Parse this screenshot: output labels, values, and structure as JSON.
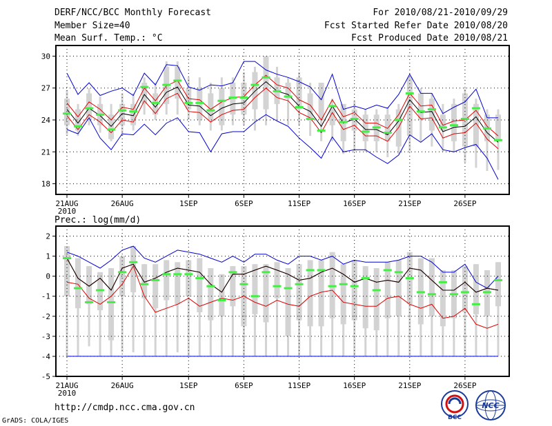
{
  "header": {
    "title": "DERF/NCC/BCC Monthly Forecast",
    "member_size": "Member Size=40",
    "variable": "Mean Surf. Temp.: °C",
    "period": "For 2010/08/21-2010/09/29",
    "started": "Fcst Started Refer Date 2010/08/20",
    "produced": "Fcst Produced Date 2010/08/21"
  },
  "footer": {
    "url": "http://cmdp.ncc.cma.gov.cn",
    "credit": "GrADS: COLA/IGES",
    "logo_bcc_text": "BCC",
    "logo_ncc_text": "NCC"
  },
  "colors": {
    "box": "#d3d3d3",
    "mean": "#000000",
    "spread": "#e00000",
    "extreme": "#0000d0",
    "median": "#44ee44",
    "grid": "#000000"
  },
  "chart_data": [
    {
      "type": "box-ensemble",
      "panel": "temperature",
      "title": "Mean Surf. Temp.: °C",
      "ylim": [
        17,
        31
      ],
      "yticks": [
        18,
        21,
        24,
        27,
        30
      ],
      "ytick_labels": [
        "18",
        "21",
        "24",
        "27",
        "30"
      ],
      "xticks": [
        1,
        6,
        12,
        17,
        22,
        27,
        32,
        37
      ],
      "xtick_labels": [
        "21AUG",
        "26AUG",
        "1SEP",
        "6SEP",
        "11SEP",
        "16SEP",
        "21SEP",
        "26SEP"
      ],
      "year_label": "2010",
      "days": 40,
      "box_low": [
        23.5,
        23.0,
        24.0,
        23.5,
        22.2,
        23.5,
        23.5,
        25.5,
        24.5,
        25.5,
        26.0,
        25.0,
        24.0,
        24.0,
        23.5,
        24.5,
        24.5,
        25.0,
        25.0,
        25.5,
        26.0,
        25.0,
        24.0,
        24.0,
        23.5,
        22.0,
        23.0,
        22.0,
        22.0,
        22.0,
        21.5,
        22.5,
        24.0,
        23.0,
        23.0,
        22.0,
        21.5,
        21.5,
        22.0,
        22.0
      ],
      "box_high": [
        26.0,
        25.0,
        26.5,
        25.5,
        24.5,
        25.5,
        25.5,
        27.5,
        26.5,
        29.0,
        29.0,
        27.0,
        27.0,
        26.5,
        27.0,
        27.5,
        27.5,
        28.5,
        30.0,
        28.0,
        27.5,
        28.0,
        26.5,
        27.5,
        25.0,
        25.5,
        25.0,
        24.5,
        24.5,
        24.5,
        25.0,
        28.0,
        26.5,
        26.0,
        24.5,
        25.5,
        26.5,
        25.5,
        24.5,
        24.5
      ],
      "whisk_low": [
        22.6,
        22.5,
        23.5,
        22.8,
        22.0,
        22.5,
        23.0,
        24.5,
        24.0,
        24.5,
        24.5,
        24.0,
        23.5,
        23.0,
        23.0,
        23.5,
        23.5,
        23.0,
        23.5,
        24.0,
        23.5,
        23.5,
        22.5,
        22.0,
        22.0,
        20.8,
        21.0,
        21.0,
        21.0,
        20.5,
        20.8,
        21.0,
        22.0,
        21.5,
        21.0,
        21.0,
        20.0,
        19.5,
        19.2,
        19.3
      ],
      "whisk_high": [
        26.8,
        25.5,
        27.0,
        26.2,
        25.5,
        26.5,
        26.5,
        28.0,
        27.5,
        29.5,
        29.5,
        28.0,
        28.0,
        27.5,
        28.0,
        28.0,
        28.5,
        29.0,
        30.0,
        29.0,
        28.0,
        28.5,
        27.5,
        27.5,
        26.0,
        25.5,
        25.8,
        25.0,
        25.0,
        25.2,
        25.5,
        28.0,
        27.0,
        26.5,
        25.5,
        26.0,
        27.0,
        26.0,
        25.0,
        25.0
      ],
      "mean": [
        25.0,
        23.7,
        25.1,
        24.4,
        23.4,
        24.6,
        24.4,
        26.4,
        25.2,
        26.6,
        27.1,
        25.4,
        25.3,
        24.4,
        25.1,
        25.5,
        25.6,
        26.7,
        27.6,
        26.7,
        26.4,
        25.3,
        24.8,
        23.4,
        25.3,
        23.7,
        24.1,
        23.1,
        23.1,
        22.6,
        23.9,
        25.9,
        24.7,
        24.8,
        22.9,
        23.3,
        23.4,
        24.3,
        22.8,
        21.9
      ],
      "mean_plus": [
        25.6,
        24.3,
        25.7,
        25.0,
        24.0,
        25.2,
        25.0,
        27.0,
        25.8,
        27.2,
        27.7,
        26.0,
        25.9,
        25.0,
        25.7,
        26.1,
        26.2,
        27.3,
        28.2,
        27.3,
        27.0,
        25.9,
        25.4,
        24.0,
        25.9,
        24.3,
        24.7,
        23.7,
        23.7,
        23.2,
        24.5,
        26.5,
        25.3,
        25.4,
        23.5,
        23.9,
        24.0,
        24.9,
        23.4,
        22.5
      ],
      "mean_minus": [
        24.4,
        23.1,
        24.5,
        23.8,
        22.8,
        24.0,
        23.8,
        25.8,
        24.6,
        26.0,
        26.5,
        24.8,
        24.7,
        23.8,
        24.5,
        24.9,
        25.0,
        26.1,
        27.0,
        26.1,
        25.8,
        24.7,
        24.2,
        22.8,
        24.7,
        23.1,
        23.5,
        22.5,
        22.5,
        22.0,
        23.3,
        25.3,
        24.1,
        24.2,
        22.3,
        22.7,
        22.8,
        23.7,
        22.2,
        21.3
      ],
      "maximum": [
        28.4,
        26.4,
        27.5,
        26.3,
        26.7,
        27.0,
        26.3,
        28.4,
        27.3,
        29.2,
        29.1,
        27.1,
        26.8,
        27.3,
        27.2,
        27.5,
        29.5,
        29.5,
        28.7,
        28.3,
        28.0,
        27.6,
        27.1,
        25.9,
        28.3,
        25.0,
        25.3,
        25.0,
        25.4,
        25.1,
        26.4,
        28.3,
        26.5,
        26.5,
        24.6,
        25.2,
        25.7,
        26.9,
        24.2,
        24.2
      ],
      "minimum": [
        23.1,
        22.7,
        24.2,
        22.3,
        21.2,
        22.7,
        22.6,
        23.6,
        22.6,
        23.7,
        24.2,
        22.9,
        22.8,
        21.0,
        22.7,
        22.9,
        22.9,
        23.8,
        24.5,
        23.9,
        23.4,
        22.3,
        21.4,
        20.4,
        22.4,
        21.0,
        21.2,
        21.2,
        20.5,
        19.9,
        20.7,
        22.6,
        21.9,
        22.7,
        21.2,
        21.0,
        21.4,
        21.7,
        20.4,
        18.4
      ],
      "median": [
        24.6,
        23.4,
        25.1,
        24.5,
        23.1,
        24.9,
        24.8,
        27.1,
        25.6,
        27.3,
        27.7,
        25.6,
        25.6,
        24.9,
        25.8,
        26.1,
        26.1,
        27.3,
        28.0,
        26.7,
        26.2,
        25.2,
        24.1,
        23.0,
        25.3,
        23.8,
        24.1,
        22.9,
        23.3,
        22.8,
        24.0,
        26.5,
        24.8,
        25.0,
        23.3,
        23.5,
        24.1,
        25.1,
        23.2,
        22.1
      ]
    },
    {
      "type": "box-ensemble",
      "panel": "precipitation",
      "title": "Prec.: log(mm/d)",
      "ylim": [
        -5,
        2.5
      ],
      "yticks": [
        -5,
        -4,
        -3,
        -2,
        -1,
        0,
        1,
        2
      ],
      "ytick_labels": [
        "-5",
        "-4",
        "-3",
        "-2",
        "-1",
        "0",
        "1",
        "2"
      ],
      "xticks": [
        1,
        6,
        12,
        17,
        22,
        27,
        32,
        37
      ],
      "xtick_labels": [
        "21AUG",
        "26AUG",
        "1SEP",
        "6SEP",
        "11SEP",
        "16SEP",
        "21SEP",
        "26SEP"
      ],
      "year_label": "2010",
      "days": 40,
      "box_low": [
        -1.0,
        -1.6,
        -1.4,
        -1.7,
        -3.2,
        -1.0,
        -0.8,
        -1.1,
        -1.6,
        -1.2,
        -1.4,
        -1.0,
        -1.8,
        -2.2,
        -2.0,
        -1.5,
        -2.5,
        -1.9,
        -2.3,
        -1.1,
        -3.0,
        -2.2,
        -2.5,
        -2.5,
        -2.1,
        -2.4,
        -2.2,
        -2.6,
        -2.7,
        -2.1,
        -2.0,
        -1.4,
        -2.4,
        -2.0,
        -2.5,
        -2.1,
        -1.8,
        -1.9,
        -2.0,
        -1.5
      ],
      "box_high": [
        1.5,
        0.9,
        0.5,
        0.2,
        0.4,
        1.0,
        1.5,
        0.6,
        0.6,
        0.8,
        0.7,
        0.8,
        0.9,
        0.4,
        0.1,
        0.5,
        0.5,
        0.6,
        0.6,
        0.7,
        0.4,
        0.6,
        0.8,
        0.8,
        1.2,
        0.6,
        0.8,
        0.5,
        0.4,
        0.7,
        0.8,
        1.2,
        0.9,
        0.9,
        0.3,
        0.3,
        0.5,
        0.6,
        0.3,
        0.7
      ],
      "whisk_low": [
        -4.0,
        -4.0,
        -3.5,
        -4.0,
        -4.0,
        -3.8,
        -3.8,
        -4.0,
        -4.0,
        -4.0,
        -3.8,
        -4.0,
        -4.0,
        -4.0,
        -4.0,
        -4.0,
        -4.0,
        -4.0,
        -4.0,
        -4.0,
        -4.0,
        -4.0,
        -4.0,
        -4.0,
        -4.0,
        -4.0,
        -4.0,
        -4.0,
        -4.0,
        -4.0,
        -4.0,
        -4.0,
        -4.0,
        -4.0,
        -4.0,
        -4.0,
        -4.0,
        -4.0,
        -4.0,
        -4.0
      ],
      "whisk_high": [
        1.5,
        0.9,
        0.5,
        0.2,
        0.4,
        1.0,
        1.5,
        0.6,
        0.6,
        0.8,
        0.7,
        0.8,
        0.9,
        0.4,
        0.1,
        0.5,
        0.5,
        0.6,
        0.6,
        0.7,
        0.4,
        0.6,
        0.8,
        0.8,
        1.2,
        0.6,
        0.8,
        0.5,
        0.4,
        0.7,
        0.8,
        1.2,
        0.9,
        0.9,
        0.3,
        0.3,
        0.5,
        0.6,
        0.3,
        0.7
      ],
      "mean": [
        0.9,
        -0.1,
        -0.5,
        -0.1,
        -0.7,
        0.4,
        0.6,
        -0.3,
        -0.1,
        0.2,
        0.4,
        0.3,
        0.2,
        -0.4,
        -0.8,
        0.1,
        0.1,
        0.3,
        0.5,
        0.3,
        0.1,
        -0.2,
        -0.1,
        0.2,
        0.4,
        0.1,
        -0.3,
        -0.1,
        -0.3,
        -0.2,
        -0.3,
        0.4,
        0.3,
        -0.2,
        -0.7,
        -0.7,
        -0.3,
        -0.8,
        -0.6,
        -0.7
      ],
      "mean_plus": [
        0.9,
        -0.1,
        -0.5,
        -0.1,
        -0.7,
        0.4,
        0.6,
        -0.3,
        -0.1,
        0.2,
        0.4,
        0.3,
        0.2,
        -0.4,
        -0.8,
        0.1,
        0.1,
        0.3,
        0.5,
        0.3,
        0.1,
        -0.2,
        -0.1,
        0.2,
        0.4,
        0.1,
        -0.3,
        -0.1,
        -0.3,
        -0.2,
        -0.3,
        0.4,
        0.3,
        -0.2,
        -0.7,
        -0.7,
        -0.3,
        -0.8,
        -0.6,
        -0.7
      ],
      "mean_minus": [
        -0.3,
        -0.4,
        -1.1,
        -1.4,
        -1.0,
        -0.4,
        0.5,
        -1.0,
        -1.8,
        -1.6,
        -1.4,
        -1.1,
        -1.5,
        -1.3,
        -1.1,
        -1.2,
        -1.0,
        -1.3,
        -1.5,
        -1.2,
        -1.4,
        -1.5,
        -1.0,
        -0.8,
        -0.7,
        -1.3,
        -1.4,
        -1.5,
        -1.5,
        -1.1,
        -1.0,
        -1.4,
        -1.6,
        -1.4,
        -2.1,
        -2.0,
        -1.6,
        -2.4,
        -2.6,
        -2.4
      ],
      "maximum": [
        1.2,
        1.0,
        0.7,
        0.4,
        0.8,
        1.3,
        1.5,
        0.9,
        0.7,
        1.0,
        1.3,
        1.2,
        1.1,
        0.9,
        0.7,
        1.0,
        0.7,
        1.1,
        1.1,
        0.8,
        0.6,
        1.0,
        1.0,
        0.8,
        1.0,
        0.6,
        0.8,
        0.7,
        0.7,
        0.7,
        0.8,
        1.0,
        1.0,
        0.7,
        0.2,
        0.2,
        0.6,
        -0.3,
        -0.6,
        0.0
      ],
      "minimum": [
        -4.0,
        -4.0,
        -4.0,
        -4.0,
        -4.0,
        -4.0,
        -4.0,
        -4.0,
        -4.0,
        -4.0,
        -4.0,
        -4.0,
        -4.0,
        -4.0,
        -4.0,
        -4.0,
        -4.0,
        -4.0,
        -4.0,
        -4.0,
        -4.0,
        -4.0,
        -4.0,
        -4.0,
        -4.0,
        -4.0,
        -4.0,
        -4.0,
        -4.0,
        -4.0,
        -4.0,
        -4.0,
        -4.0,
        -4.0,
        -4.0,
        -4.0,
        -4.0,
        -4.0,
        -4.0,
        -4.0
      ],
      "median": [
        0.9,
        -0.6,
        -1.3,
        -0.7,
        -1.3,
        0.2,
        0.7,
        -0.4,
        -0.2,
        0.1,
        0.1,
        0.1,
        -0.1,
        -0.5,
        -1.2,
        0.2,
        -0.4,
        -1.0,
        0.2,
        -0.5,
        -0.6,
        -0.4,
        0.3,
        0.3,
        -0.5,
        -0.4,
        -0.5,
        -0.1,
        -0.7,
        0.3,
        0.2,
        -0.1,
        -0.8,
        -0.9,
        -0.3,
        -0.9,
        -0.8,
        -1.4,
        -0.8,
        -0.2
      ]
    }
  ]
}
